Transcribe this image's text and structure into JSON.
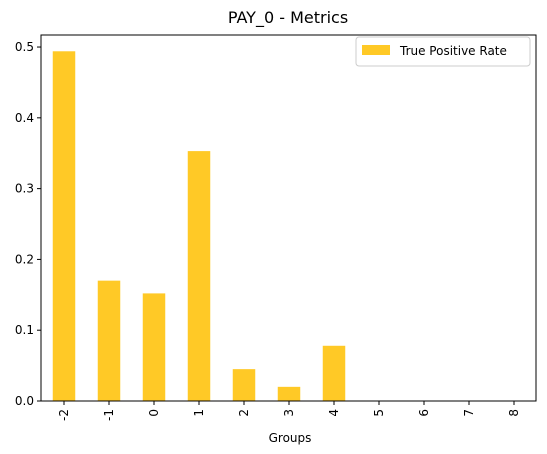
{
  "chart_data": {
    "type": "bar",
    "title": "PAY_0 - Metrics",
    "xlabel": "Groups",
    "ylabel": "",
    "categories": [
      "-2",
      "-1",
      "0",
      "1",
      "2",
      "3",
      "4",
      "5",
      "6",
      "7",
      "8"
    ],
    "series": [
      {
        "name": "True Positive Rate",
        "color": "#ffc926",
        "values": [
          0.494,
          0.17,
          0.152,
          0.353,
          0.045,
          0.02,
          0.078,
          0,
          0,
          0,
          0
        ]
      }
    ],
    "ylim": [
      0,
      0.517
    ],
    "yticks": [
      "0.0",
      "0.1",
      "0.2",
      "0.3",
      "0.4",
      "0.5"
    ],
    "legend_position": "top-right",
    "grid": false
  }
}
